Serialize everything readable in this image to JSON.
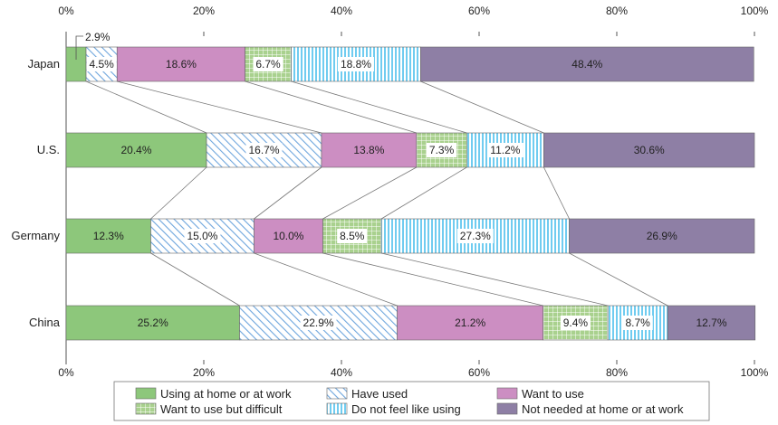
{
  "chart_data": {
    "type": "bar",
    "orientation": "horizontal",
    "stacked": "percent",
    "title": "",
    "xlabel": "",
    "ylabel": "",
    "xlim": [
      0,
      100
    ],
    "xticks": [
      "0%",
      "20%",
      "40%",
      "60%",
      "80%",
      "100%"
    ],
    "categories": [
      "Japan",
      "U.S.",
      "Germany",
      "China"
    ],
    "series": [
      {
        "name": "Using at home or at work",
        "values": [
          2.9,
          20.4,
          12.3,
          25.2
        ],
        "labels": [
          "2.9%",
          "20.4%",
          "12.3%",
          "25.2%"
        ],
        "color": "#8dc77b",
        "pattern": "solid"
      },
      {
        "name": "Have used",
        "values": [
          4.5,
          16.7,
          15.0,
          22.9
        ],
        "labels": [
          "4.5%",
          "16.7%",
          "15.0%",
          "22.9%"
        ],
        "color": "#7aaee0",
        "pattern": "diagonal"
      },
      {
        "name": "Want to use",
        "values": [
          18.6,
          13.8,
          10.0,
          21.2
        ],
        "labels": [
          "18.6%",
          "13.8%",
          "10.0%",
          "21.2%"
        ],
        "color": "#cc8ec2",
        "pattern": "solid"
      },
      {
        "name": "Want to use but difficult",
        "values": [
          6.7,
          7.3,
          8.5,
          9.4
        ],
        "labels": [
          "6.7%",
          "7.3%",
          "8.5%",
          "9.4%"
        ],
        "color": "#a9d18e",
        "pattern": "grid"
      },
      {
        "name": "Do not feel like using",
        "values": [
          18.8,
          11.2,
          27.3,
          8.7
        ],
        "labels": [
          "18.8%",
          "11.2%",
          "27.3%",
          "8.7%"
        ],
        "color": "#5fc6ea",
        "pattern": "vertical"
      },
      {
        "name": "Not needed at home or at work",
        "values": [
          48.4,
          30.6,
          26.9,
          12.7
        ],
        "labels": [
          "48.4%",
          "30.6%",
          "26.9%",
          "12.7%"
        ],
        "color": "#8e7fa5",
        "pattern": "solid"
      }
    ],
    "connector_lines": true,
    "legend_position": "bottom"
  }
}
